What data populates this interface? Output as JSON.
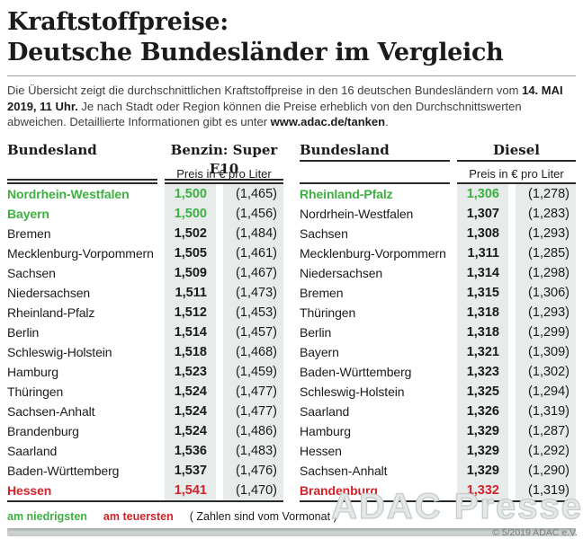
{
  "title": {
    "line1": "Kraftstoffpreise:",
    "line2": "Deutsche Bundesländer im Vergleich"
  },
  "intro": {
    "text_before": "Die Übersicht zeigt die durchschnittlichen Kraftstoffpreise in den 16 deutschen Bundesländern vom ",
    "bold_date": "14. MAI 2019, 11 Uhr.",
    "text_mid": " Je nach Stadt oder Region können die Preise erheblich von den Durchschnittswerten abweichen. Detaillierte Informationen gibt es unter ",
    "bold_link": "www.adac.de/tanken",
    "text_after": "."
  },
  "colors": {
    "green": "#3cb141",
    "red": "#d2232a",
    "cell_bg": "#e7ebea"
  },
  "tables": [
    {
      "col_header": "Bundesland",
      "fuel_header": "Benzin: Super E10",
      "unit_label": "Preis in € pro Liter",
      "rows": [
        {
          "state": "Nordrhein-Westfalen",
          "price": "1,500",
          "prev": "(1,465)",
          "highlight": "lowest"
        },
        {
          "state": "Bayern",
          "price": "1,500",
          "prev": "(1,456)",
          "highlight": "lowest"
        },
        {
          "state": "Bremen",
          "price": "1,502",
          "prev": "(1,484)",
          "highlight": ""
        },
        {
          "state": "Mecklenburg-Vorpommern",
          "price": "1,505",
          "prev": "(1,461)",
          "highlight": ""
        },
        {
          "state": "Sachsen",
          "price": "1,509",
          "prev": "(1,467)",
          "highlight": ""
        },
        {
          "state": "Niedersachsen",
          "price": "1,511",
          "prev": "(1,473)",
          "highlight": ""
        },
        {
          "state": "Rheinland-Pfalz",
          "price": "1,512",
          "prev": "(1,453)",
          "highlight": ""
        },
        {
          "state": "Berlin",
          "price": "1,514",
          "prev": "(1,457)",
          "highlight": ""
        },
        {
          "state": "Schleswig-Holstein",
          "price": "1,518",
          "prev": "(1,468)",
          "highlight": ""
        },
        {
          "state": "Hamburg",
          "price": "1,523",
          "prev": "(1,459)",
          "highlight": ""
        },
        {
          "state": "Thüringen",
          "price": "1,524",
          "prev": "(1,477)",
          "highlight": ""
        },
        {
          "state": "Sachsen-Anhalt",
          "price": "1,524",
          "prev": "(1,477)",
          "highlight": ""
        },
        {
          "state": "Brandenburg",
          "price": "1,524",
          "prev": "(1,486)",
          "highlight": ""
        },
        {
          "state": "Saarland",
          "price": "1,536",
          "prev": "(1,483)",
          "highlight": ""
        },
        {
          "state": "Baden-Württemberg",
          "price": "1,537",
          "prev": "(1,476)",
          "highlight": ""
        },
        {
          "state": "Hessen",
          "price": "1,541",
          "prev": "(1,470)",
          "highlight": "highest"
        }
      ]
    },
    {
      "col_header": "Bundesland",
      "fuel_header": "Diesel",
      "unit_label": "Preis in € pro Liter",
      "rows": [
        {
          "state": "Rheinland-Pfalz",
          "price": "1,306",
          "prev": "(1,278)",
          "highlight": "lowest"
        },
        {
          "state": "Nordrhein-Westfalen",
          "price": "1,307",
          "prev": "(1,283)",
          "highlight": ""
        },
        {
          "state": "Sachsen",
          "price": "1,308",
          "prev": "(1,293)",
          "highlight": ""
        },
        {
          "state": "Mecklenburg-Vorpommern",
          "price": "1,311",
          "prev": "(1,285)",
          "highlight": ""
        },
        {
          "state": "Niedersachsen",
          "price": "1,314",
          "prev": "(1,298)",
          "highlight": ""
        },
        {
          "state": "Bremen",
          "price": "1,315",
          "prev": "(1,306)",
          "highlight": ""
        },
        {
          "state": "Thüringen",
          "price": "1,318",
          "prev": "(1,293)",
          "highlight": ""
        },
        {
          "state": "Berlin",
          "price": "1,318",
          "prev": "(1,299)",
          "highlight": ""
        },
        {
          "state": "Bayern",
          "price": "1,321",
          "prev": "(1,309)",
          "highlight": ""
        },
        {
          "state": "Baden-Württemberg",
          "price": "1,323",
          "prev": "(1,302)",
          "highlight": ""
        },
        {
          "state": "Schleswig-Holstein",
          "price": "1,325",
          "prev": "(1,294)",
          "highlight": ""
        },
        {
          "state": "Saarland",
          "price": "1,326",
          "prev": "(1,319)",
          "highlight": ""
        },
        {
          "state": "Hamburg",
          "price": "1,329",
          "prev": "(1,287)",
          "highlight": ""
        },
        {
          "state": "Hessen",
          "price": "1,329",
          "prev": "(1,292)",
          "highlight": ""
        },
        {
          "state": "Sachsen-Anhalt",
          "price": "1,329",
          "prev": "(1,290)",
          "highlight": ""
        },
        {
          "state": "Brandenburg",
          "price": "1,332",
          "prev": "(1,319)",
          "highlight": "highest"
        }
      ]
    }
  ],
  "legend": {
    "lowest_label": "am niedrigsten",
    "highest_label": "am teuersten",
    "note": "( Zahlen sind vom Vormonat )"
  },
  "watermark": "ADAC Presse",
  "copyright": "© 5/2019 ADAC e.V.",
  "chart_data": [
    {
      "type": "table",
      "title": "Benzin: Super E10",
      "unit": "Preis in € pro Liter",
      "columns": [
        "Bundesland",
        "Preis",
        "Vormonat"
      ],
      "rows": [
        [
          "Nordrhein-Westfalen",
          1.5,
          1.465
        ],
        [
          "Bayern",
          1.5,
          1.456
        ],
        [
          "Bremen",
          1.502,
          1.484
        ],
        [
          "Mecklenburg-Vorpommern",
          1.505,
          1.461
        ],
        [
          "Sachsen",
          1.509,
          1.467
        ],
        [
          "Niedersachsen",
          1.511,
          1.473
        ],
        [
          "Rheinland-Pfalz",
          1.512,
          1.453
        ],
        [
          "Berlin",
          1.514,
          1.457
        ],
        [
          "Schleswig-Holstein",
          1.518,
          1.468
        ],
        [
          "Hamburg",
          1.523,
          1.459
        ],
        [
          "Thüringen",
          1.524,
          1.477
        ],
        [
          "Sachsen-Anhalt",
          1.524,
          1.477
        ],
        [
          "Brandenburg",
          1.524,
          1.486
        ],
        [
          "Saarland",
          1.536,
          1.483
        ],
        [
          "Baden-Württemberg",
          1.537,
          1.476
        ],
        [
          "Hessen",
          1.541,
          1.47
        ]
      ]
    },
    {
      "type": "table",
      "title": "Diesel",
      "unit": "Preis in € pro Liter",
      "columns": [
        "Bundesland",
        "Preis",
        "Vormonat"
      ],
      "rows": [
        [
          "Rheinland-Pfalz",
          1.306,
          1.278
        ],
        [
          "Nordrhein-Westfalen",
          1.307,
          1.283
        ],
        [
          "Sachsen",
          1.308,
          1.293
        ],
        [
          "Mecklenburg-Vorpommern",
          1.311,
          1.285
        ],
        [
          "Niedersachsen",
          1.314,
          1.298
        ],
        [
          "Bremen",
          1.315,
          1.306
        ],
        [
          "Thüringen",
          1.318,
          1.293
        ],
        [
          "Berlin",
          1.318,
          1.299
        ],
        [
          "Bayern",
          1.321,
          1.309
        ],
        [
          "Baden-Württemberg",
          1.323,
          1.302
        ],
        [
          "Schleswig-Holstein",
          1.325,
          1.294
        ],
        [
          "Saarland",
          1.326,
          1.319
        ],
        [
          "Hamburg",
          1.329,
          1.287
        ],
        [
          "Hessen",
          1.329,
          1.292
        ],
        [
          "Sachsen-Anhalt",
          1.329,
          1.29
        ],
        [
          "Brandenburg",
          1.332,
          1.319
        ]
      ]
    }
  ]
}
